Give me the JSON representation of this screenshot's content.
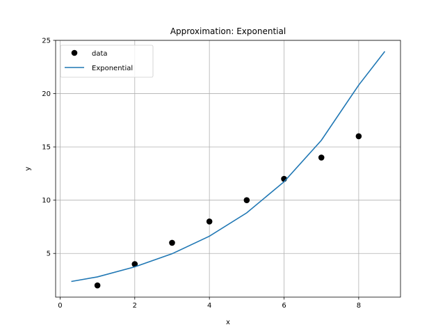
{
  "chart_data": {
    "type": "scatter",
    "title": "Approximation: Exponential",
    "xlabel": "x",
    "ylabel": "y",
    "xlim": [
      -0.12,
      9.12
    ],
    "ylim": [
      0.9,
      25
    ],
    "xticks": [
      0,
      2,
      4,
      6,
      8
    ],
    "yticks": [
      5,
      10,
      15,
      20,
      25
    ],
    "grid": true,
    "legend_position": "top-left",
    "series": [
      {
        "name": "data",
        "kind": "scatter",
        "color": "#000000",
        "x": [
          1,
          2,
          3,
          4,
          5,
          6,
          7,
          8
        ],
        "y": [
          2,
          4,
          6,
          8,
          10,
          12,
          14,
          16
        ]
      },
      {
        "name": "Exponential",
        "kind": "line",
        "color": "#1f77b4",
        "x": [
          0.3,
          1,
          2,
          3,
          4,
          5,
          6,
          7,
          8,
          8.7
        ],
        "y": [
          2.37,
          2.8,
          3.74,
          4.97,
          6.62,
          8.81,
          11.73,
          15.62,
          20.8,
          23.96
        ]
      }
    ]
  }
}
